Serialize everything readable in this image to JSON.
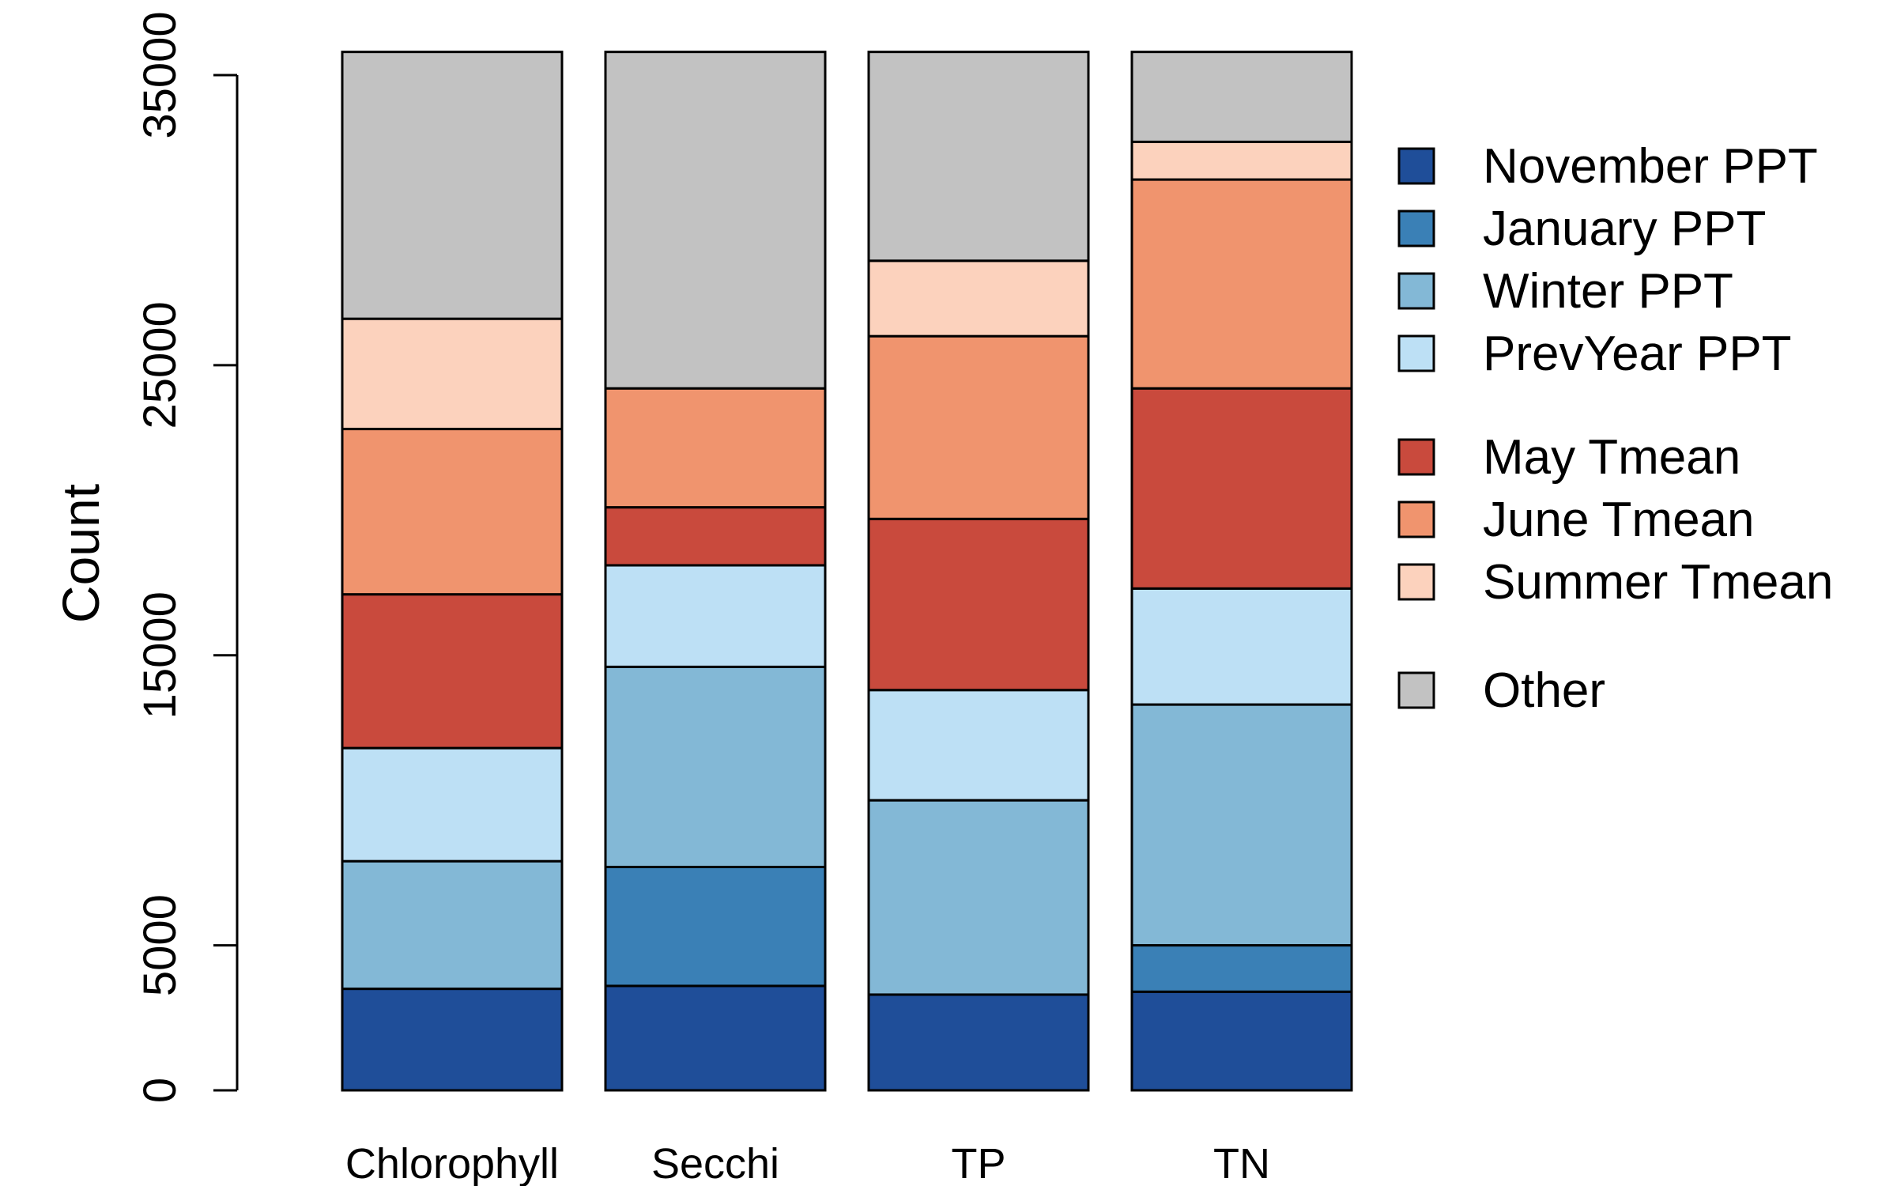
{
  "chart_data": {
    "type": "bar",
    "stacked": true,
    "ylabel": "Count",
    "xlabel": "",
    "title": "",
    "ylim": [
      0,
      35000
    ],
    "yticks": [
      0,
      5000,
      15000,
      25000,
      35000
    ],
    "grid": false,
    "legend_position": "right",
    "categories": [
      "Chlorophyll",
      "Secchi",
      "TP",
      "TN"
    ],
    "series": [
      {
        "name": "November PPT",
        "color": "#1f4e99",
        "values": [
          3500,
          3600,
          3300,
          3400
        ]
      },
      {
        "name": "January PPT",
        "color": "#3a80b6",
        "values": [
          0,
          4100,
          0,
          1600
        ]
      },
      {
        "name": "Winter PPT",
        "color": "#83b8d6",
        "values": [
          4400,
          6900,
          6700,
          8300
        ]
      },
      {
        "name": "PrevYear PPT",
        "color": "#bde0f5",
        "values": [
          3900,
          3500,
          3800,
          4000
        ]
      },
      {
        "name": "May Tmean",
        "color": "#c94a3d",
        "values": [
          5300,
          2000,
          5900,
          6900
        ]
      },
      {
        "name": "June Tmean",
        "color": "#f0946e",
        "values": [
          5700,
          4100,
          6300,
          7200
        ]
      },
      {
        "name": "Summer Tmean",
        "color": "#fcd2bd",
        "values": [
          3800,
          0,
          2600,
          1300
        ]
      },
      {
        "name": "Other",
        "color": "#c2c2c2",
        "values": [
          9200,
          11600,
          7200,
          3100
        ]
      }
    ]
  }
}
